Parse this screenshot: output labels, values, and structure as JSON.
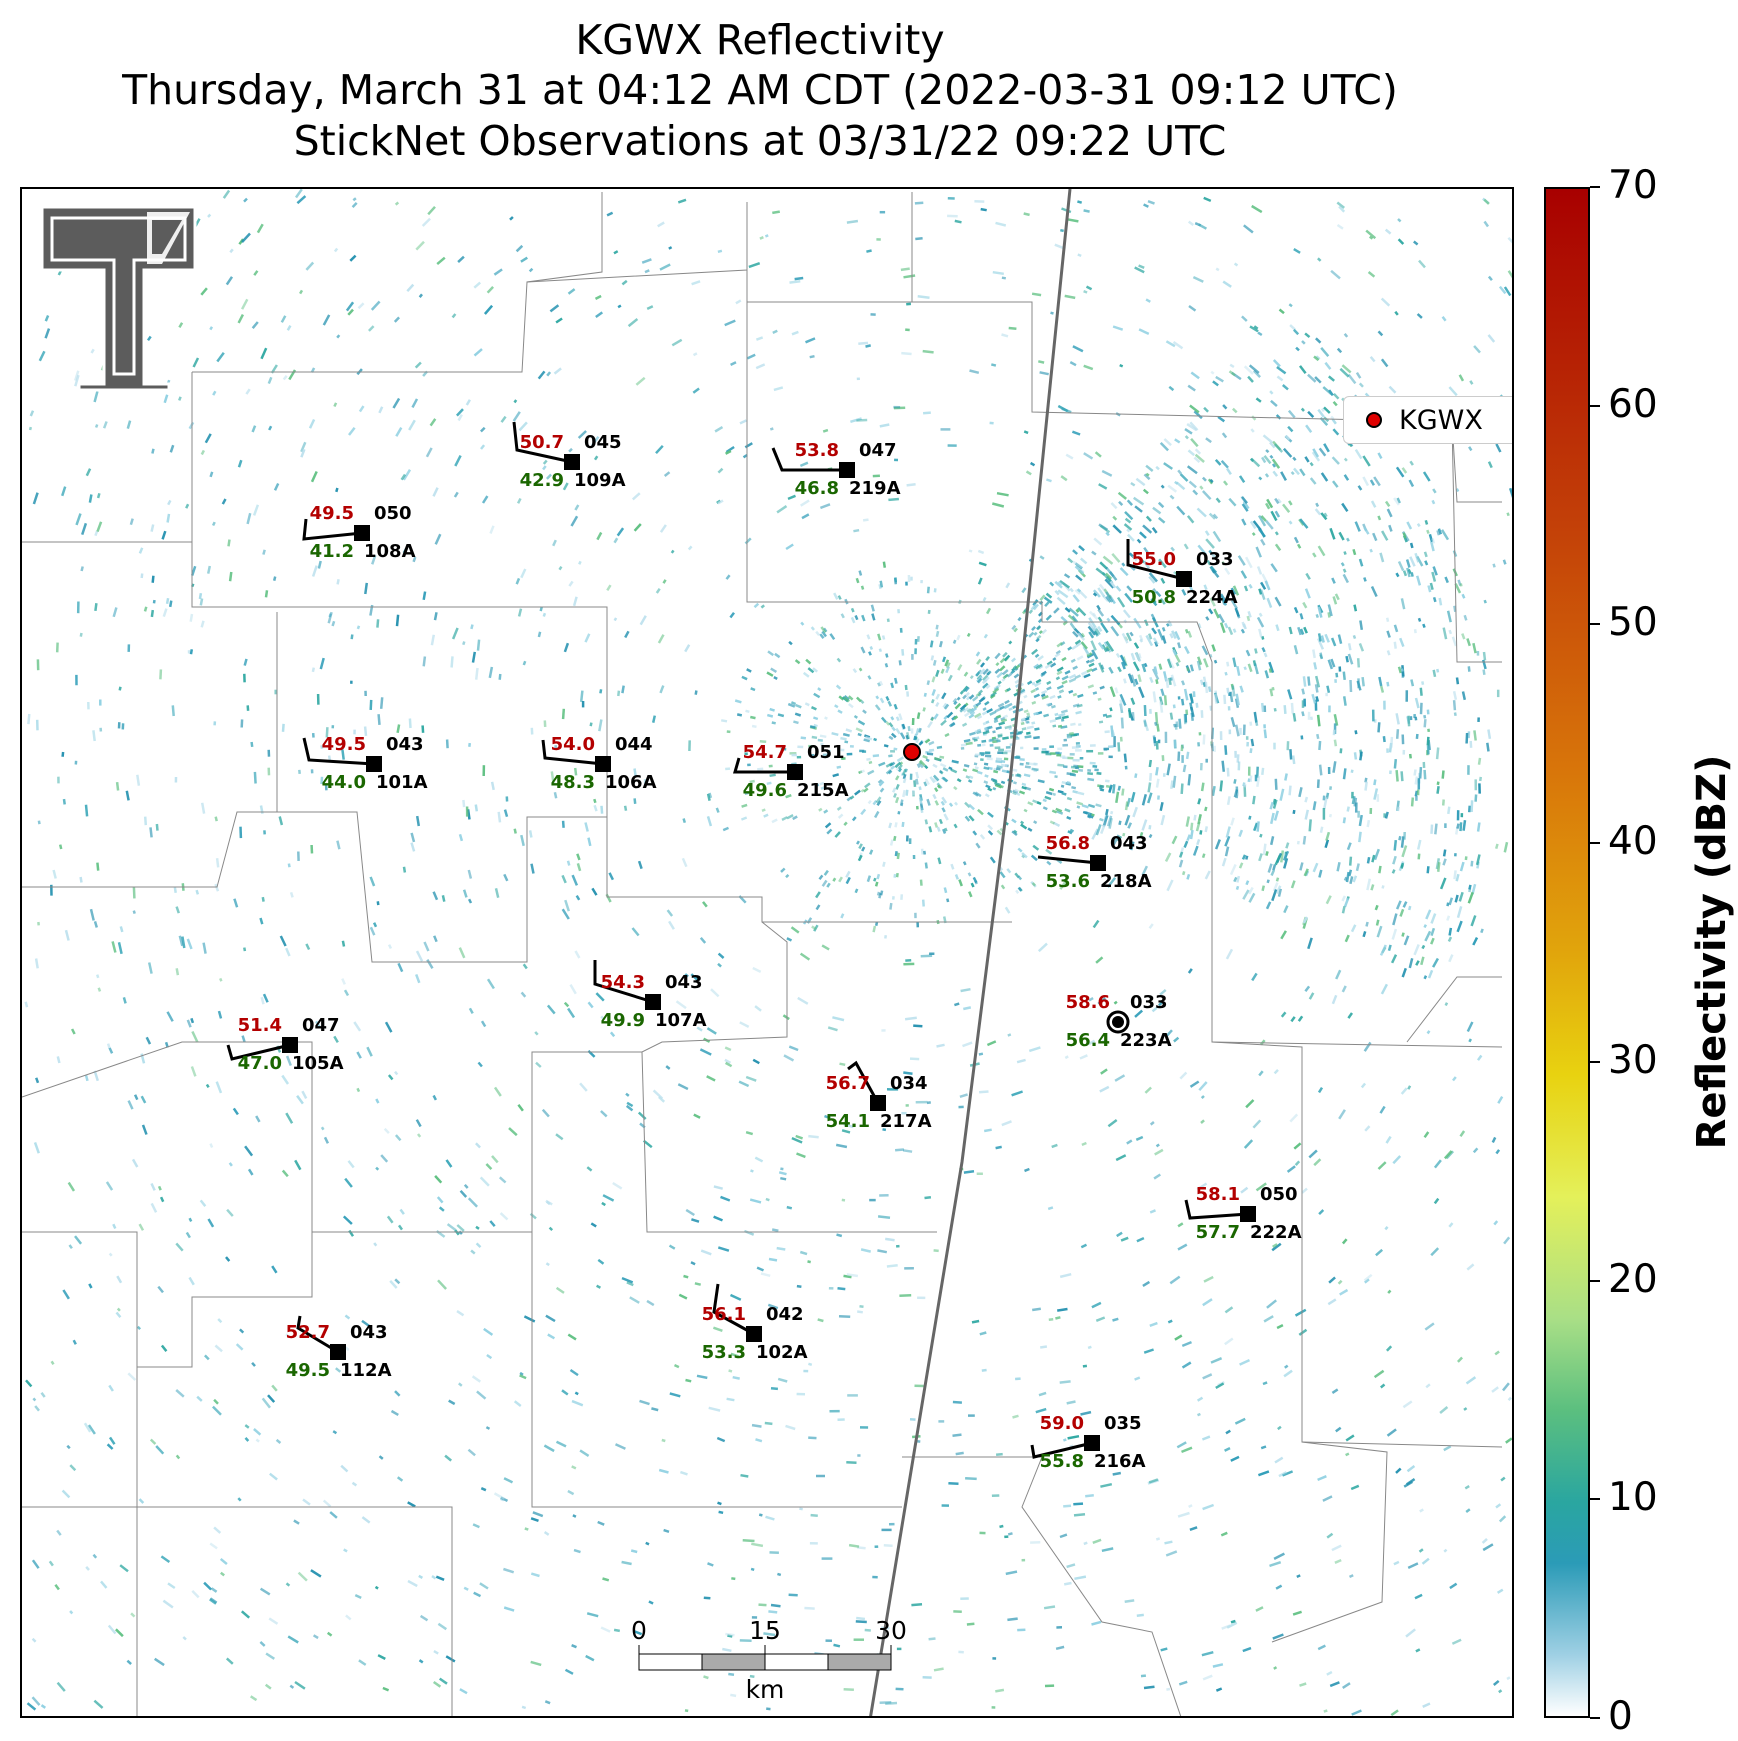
{
  "title": {
    "line1": "KGWX Reflectivity",
    "line2": "Thursday, March 31 at 04:12 AM CDT (2022-03-31 09:12 UTC)",
    "line3": "StickNet Observations at 03/31/22 09:22 UTC"
  },
  "legend": {
    "label": "KGWX",
    "marker_color": "#e00000"
  },
  "colorbar": {
    "label": "Reflectivity (dBZ)",
    "ticks": [
      "0",
      "10",
      "20",
      "30",
      "40",
      "50",
      "60",
      "70"
    ],
    "range": [
      0,
      70
    ]
  },
  "scalebar": {
    "ticks": [
      "0",
      "15",
      "30"
    ],
    "unit": "km"
  },
  "colors": {
    "temperature": "#b30000",
    "dewpoint": "#1a6600",
    "station": "#000000",
    "radar_echo": "#2b9bb7"
  },
  "stations": [
    {
      "id": "109A",
      "temp": "50.7",
      "dew": "42.9",
      "dir": "045"
    },
    {
      "id": "219A",
      "temp": "53.8",
      "dew": "46.8",
      "dir": "047"
    },
    {
      "id": "108A",
      "temp": "49.5",
      "dew": "41.2",
      "dir": "050"
    },
    {
      "id": "224A",
      "temp": "55.0",
      "dew": "50.8",
      "dir": "033"
    },
    {
      "id": "101A",
      "temp": "49.5",
      "dew": "44.0",
      "dir": "043"
    },
    {
      "id": "106A",
      "temp": "54.0",
      "dew": "48.3",
      "dir": "044"
    },
    {
      "id": "215A",
      "temp": "54.7",
      "dew": "49.6",
      "dir": "051"
    },
    {
      "id": "218A",
      "temp": "56.8",
      "dew": "53.6",
      "dir": "043"
    },
    {
      "id": "107A",
      "temp": "54.3",
      "dew": "49.9",
      "dir": "043"
    },
    {
      "id": "105A",
      "temp": "51.4",
      "dew": "47.0",
      "dir": "047"
    },
    {
      "id": "223A",
      "temp": "58.6",
      "dew": "56.4",
      "dir": "033"
    },
    {
      "id": "217A",
      "temp": "56.7",
      "dew": "54.1",
      "dir": "034"
    },
    {
      "id": "222A",
      "temp": "58.1",
      "dew": "57.7",
      "dir": "050"
    },
    {
      "id": "112A",
      "temp": "52.7",
      "dew": "49.5",
      "dir": "043"
    },
    {
      "id": "102A",
      "temp": "56.1",
      "dew": "53.3",
      "dir": "042"
    },
    {
      "id": "216A",
      "temp": "59.0",
      "dew": "55.8",
      "dir": "035"
    }
  ]
}
